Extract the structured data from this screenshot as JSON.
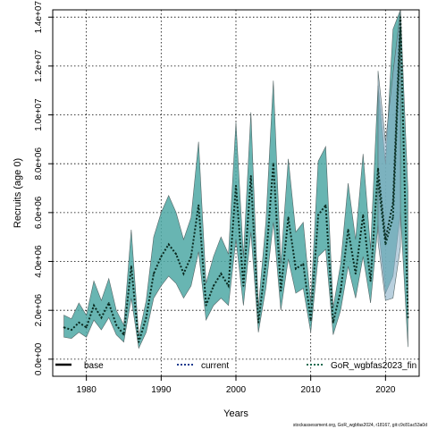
{
  "chart_data": {
    "type": "area",
    "xlabel": "Years",
    "ylabel": "Recruits (age 0)",
    "credit": "stockassessment.org, GoR_wgbfas2024, r18167, git:c9c81ac53a0d",
    "xlim": [
      1975.5,
      2024.5
    ],
    "ylim": [
      -700000,
      14300000
    ],
    "grid": true,
    "x_ticks": [
      1980,
      1990,
      2000,
      2010,
      2020
    ],
    "x_tick_labels": [
      "1980",
      "1990",
      "2000",
      "2010",
      "2020"
    ],
    "y_ticks": [
      0,
      2000000,
      4000000,
      6000000,
      8000000,
      10000000,
      12000000,
      14000000
    ],
    "y_tick_labels": [
      "0.0e+00",
      "2.0e+06",
      "4.0e+06",
      "6.0e+06",
      "8.0e+06",
      "1.0e+07",
      "1.2e+07",
      "1.4e+07"
    ],
    "legend": {
      "placement": "bottom",
      "entries": [
        {
          "label": "base",
          "color": "#000000",
          "style": "solid"
        },
        {
          "label": "current",
          "color": "#1a3a8f",
          "style": "dotted"
        },
        {
          "label": "GoR_wgbfas2023_fin",
          "color": "#1c6b50",
          "style": "dotted"
        }
      ]
    },
    "colors": {
      "band_teal": "#4ea8a4",
      "band_blue": "#8ab0c8",
      "band_outline": "#556666",
      "line_dark": "#0a2a20"
    },
    "series": [
      {
        "name": "current",
        "x": [
          1977,
          1978,
          1979,
          1980,
          1981,
          1982,
          1983,
          1984,
          1985,
          1986,
          1987,
          1988,
          1989,
          1990,
          1991,
          1992,
          1993,
          1994,
          1995,
          1996,
          1997,
          1998,
          1999,
          2000,
          2001,
          2002,
          2003,
          2004,
          2005,
          2006,
          2007,
          2008,
          2009,
          2010,
          2011,
          2012,
          2013,
          2014,
          2015,
          2016,
          2017,
          2018,
          2019,
          2020,
          2021,
          2022,
          2023
        ],
        "values": [
          1300000,
          1200000,
          1500000,
          1300000,
          2200000,
          1700000,
          2300000,
          1400000,
          1000000,
          3800000,
          700000,
          1700000,
          3500000,
          4200000,
          4700000,
          4300000,
          3500000,
          4200000,
          6300000,
          2200000,
          3000000,
          3500000,
          3000000,
          7100000,
          3000000,
          7500000,
          1500000,
          4000000,
          8000000,
          2800000,
          5800000,
          3700000,
          3900000,
          1600000,
          5900000,
          6300000,
          1500000,
          2800000,
          5300000,
          3500000,
          5900000,
          3200000,
          7800000,
          4900000,
          6400000,
          14000000,
          1700000
        ],
        "lower": [
          900000,
          850000,
          1100000,
          900000,
          1600000,
          1200000,
          1700000,
          1000000,
          700000,
          2500000,
          450000,
          1100000,
          2500000,
          3000000,
          3400000,
          3100000,
          2500000,
          3000000,
          4400000,
          1600000,
          2200000,
          2500000,
          2200000,
          4900000,
          2200000,
          5200000,
          1100000,
          2900000,
          5600000,
          2000000,
          4100000,
          2700000,
          2900000,
          1100000,
          4200000,
          4500000,
          1000000,
          2000000,
          3800000,
          2500000,
          4200000,
          2300000,
          5500000,
          2700000,
          3400000,
          6000000,
          500000
        ],
        "upper": [
          1800000,
          1650000,
          2300000,
          1800000,
          3200000,
          2400000,
          3300000,
          2000000,
          1400000,
          5300000,
          950000,
          2400000,
          5000000,
          6000000,
          6700000,
          6000000,
          4900000,
          5800000,
          8900000,
          3100000,
          4200000,
          5000000,
          4300000,
          9700000,
          4200000,
          10100000,
          2100000,
          5600000,
          11400000,
          3900000,
          8200000,
          5200000,
          5600000,
          2300000,
          8100000,
          8700000,
          2100000,
          3900000,
          7200000,
          4900000,
          8400000,
          4500000,
          11200000,
          8000000,
          13500000,
          14600000,
          6900000
        ]
      },
      {
        "name": "GoR_wgbfas2023_fin",
        "x": [
          2019,
          2020,
          2021,
          2022
        ],
        "values": [
          7300000,
          4700000,
          5800000,
          13500000
        ],
        "lower": [
          4800000,
          2400000,
          2500000,
          4600000
        ],
        "upper": [
          11800000,
          8900000,
          11700000,
          14600000
        ]
      }
    ]
  }
}
